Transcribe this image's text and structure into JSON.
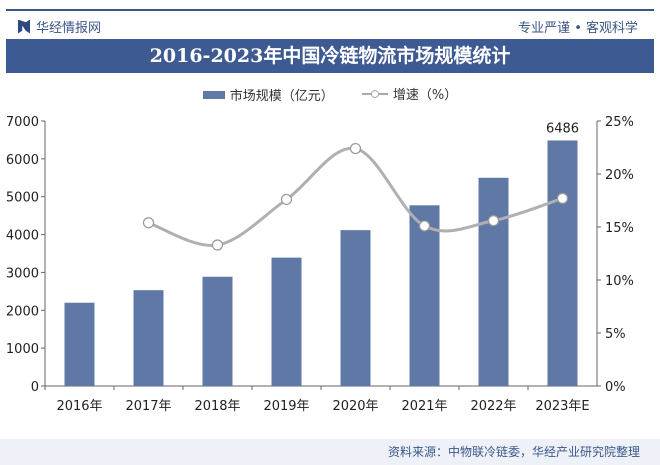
{
  "header": {
    "brand": "华经情报网",
    "slogan": "专业严谨 • 客观科学"
  },
  "footer": {
    "source": "资料来源：中物联冷链委，华经产业研究院整理"
  },
  "chart_data": {
    "type": "bar",
    "title": "2016-2023年中国冷链物流市场规模统计",
    "categories": [
      "2016年",
      "2017年",
      "2018年",
      "2019年",
      "2020年",
      "2021年",
      "2022年",
      "2023年E"
    ],
    "series": [
      {
        "name": "市场规模（亿元）",
        "type": "bar",
        "axis": "left",
        "color": "#5f78a6",
        "values": [
          2200,
          2531,
          2886,
          3391,
          4117,
          4773,
          5500,
          6486
        ]
      },
      {
        "name": "增速（%）",
        "type": "line",
        "axis": "right",
        "color": "#b0b0b0",
        "values": [
          null,
          15.4,
          13.3,
          17.6,
          22.4,
          15.1,
          15.6,
          17.7
        ]
      }
    ],
    "data_labels": [
      {
        "category": "2023年E",
        "text": "6486"
      }
    ],
    "ylim": [
      0,
      7000
    ],
    "yticks": [
      "0",
      "1000",
      "2000",
      "3000",
      "4000",
      "5000",
      "6000",
      "7000"
    ],
    "y2lim": [
      0,
      25
    ],
    "y2ticks": [
      "0%",
      "5%",
      "10%",
      "15%",
      "20%",
      "25%"
    ],
    "legend": "top-center",
    "grid": false
  }
}
